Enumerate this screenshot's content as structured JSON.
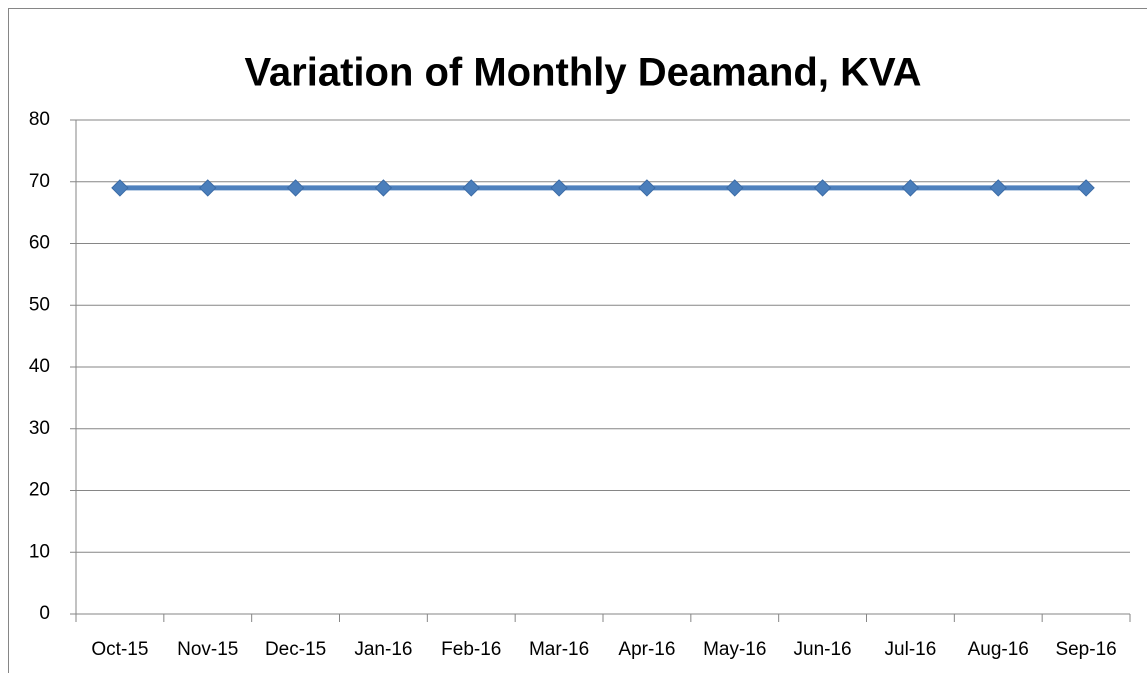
{
  "chart_data": {
    "type": "line",
    "title": "Variation of Monthly Deamand, KVA",
    "categories": [
      "Oct-15",
      "Nov-15",
      "Dec-15",
      "Jan-16",
      "Feb-16",
      "Mar-16",
      "Apr-16",
      "May-16",
      "Jun-16",
      "Jul-16",
      "Aug-16",
      "Sep-16"
    ],
    "values": [
      69,
      69,
      69,
      69,
      69,
      69,
      69,
      69,
      69,
      69,
      69,
      69
    ],
    "color": "#4f81bd",
    "marker": "diamond",
    "ylim": [
      0,
      80
    ],
    "yticks": [
      0,
      10,
      20,
      30,
      40,
      50,
      60,
      70,
      80
    ],
    "grid": true
  }
}
